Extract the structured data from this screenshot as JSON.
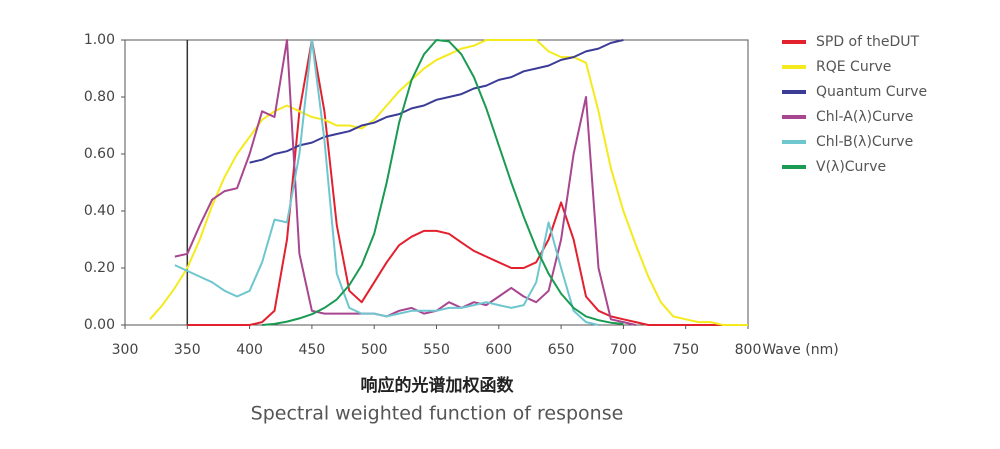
{
  "chart_data": {
    "type": "line",
    "title": "响应的光谱加权函数",
    "subtitle": "Spectral weighted function of response",
    "xlabel": "Wave (nm)",
    "x": [
      300,
      310,
      320,
      330,
      340,
      350,
      360,
      370,
      380,
      390,
      400,
      410,
      420,
      430,
      440,
      450,
      460,
      470,
      480,
      490,
      500,
      510,
      520,
      530,
      540,
      550,
      560,
      570,
      580,
      590,
      600,
      610,
      620,
      630,
      640,
      650,
      660,
      670,
      680,
      690,
      700,
      710,
      720,
      730,
      740,
      750,
      760,
      770,
      780,
      790,
      800
    ],
    "xlim": [
      300,
      800
    ],
    "xticks": [
      300,
      350,
      400,
      450,
      500,
      550,
      600,
      650,
      700,
      750,
      800
    ],
    "ylim": [
      0,
      1
    ],
    "yticks": [
      {
        "value": 0,
        "label": "0.00"
      },
      {
        "value": 0.2,
        "label": "0.20"
      },
      {
        "value": 0.4,
        "label": "0.40"
      },
      {
        "value": 0.6,
        "label": "0.60"
      },
      {
        "value": 0.8,
        "label": "0.80"
      },
      {
        "value": 1,
        "label": "1.00"
      }
    ],
    "legend": "right",
    "series": [
      {
        "name": "SPD of theDUT",
        "color": "#e2202e",
        "values": [
          null,
          null,
          null,
          null,
          null,
          0,
          0,
          0,
          0,
          0,
          0,
          0.01,
          0.05,
          0.3,
          0.75,
          1.0,
          0.75,
          0.35,
          0.12,
          0.08,
          0.15,
          0.22,
          0.28,
          0.31,
          0.33,
          0.33,
          0.32,
          0.29,
          0.26,
          0.24,
          0.22,
          0.2,
          0.2,
          0.22,
          0.3,
          0.43,
          0.3,
          0.1,
          0.05,
          0.03,
          0.02,
          0.01,
          0,
          0,
          0,
          0,
          0,
          0,
          0,
          0,
          0
        ]
      },
      {
        "name": "RQE Curve",
        "color": "#f4ea1c",
        "values": [
          null,
          null,
          0.02,
          0.07,
          0.13,
          0.2,
          0.3,
          0.42,
          0.52,
          0.6,
          0.66,
          0.72,
          0.75,
          0.77,
          0.75,
          0.73,
          0.72,
          0.7,
          0.7,
          0.69,
          0.72,
          0.77,
          0.82,
          0.86,
          0.9,
          0.93,
          0.95,
          0.97,
          0.98,
          1.0,
          1.0,
          1.0,
          1.0,
          1.0,
          0.96,
          0.94,
          0.94,
          0.92,
          0.75,
          0.55,
          0.4,
          0.28,
          0.17,
          0.08,
          0.03,
          0.02,
          0.01,
          0.01,
          0,
          0,
          0
        ]
      },
      {
        "name": "Quantum Curve",
        "color": "#3b3c96",
        "values": [
          null,
          null,
          null,
          null,
          null,
          null,
          null,
          null,
          null,
          null,
          0.57,
          0.58,
          0.6,
          0.61,
          0.63,
          0.64,
          0.66,
          0.67,
          0.68,
          0.7,
          0.71,
          0.73,
          0.74,
          0.76,
          0.77,
          0.79,
          0.8,
          0.81,
          0.83,
          0.84,
          0.86,
          0.87,
          0.89,
          0.9,
          0.91,
          0.93,
          0.94,
          0.96,
          0.97,
          0.99,
          1.0,
          null,
          null,
          null,
          null,
          null,
          null,
          null,
          null,
          null,
          null
        ]
      },
      {
        "name": "Chl-A(λ)Curve",
        "color": "#a8468f",
        "values": [
          null,
          null,
          null,
          null,
          0.24,
          0.25,
          0.35,
          0.44,
          0.47,
          0.48,
          0.6,
          0.75,
          0.73,
          1.0,
          0.25,
          0.05,
          0.04,
          0.04,
          0.04,
          0.04,
          0.04,
          0.03,
          0.05,
          0.06,
          0.04,
          0.05,
          0.08,
          0.06,
          0.08,
          0.07,
          0.1,
          0.13,
          0.1,
          0.08,
          0.12,
          0.3,
          0.6,
          0.8,
          0.2,
          0.02,
          0.01,
          0,
          null,
          null,
          null,
          null,
          null,
          null,
          null,
          null,
          null
        ]
      },
      {
        "name": "Chl-B(λ)Curve",
        "color": "#6ec6cf",
        "values": [
          null,
          null,
          null,
          null,
          0.21,
          0.19,
          0.17,
          0.15,
          0.12,
          0.1,
          0.12,
          0.22,
          0.37,
          0.36,
          0.6,
          1.0,
          0.65,
          0.18,
          0.06,
          0.04,
          0.04,
          0.03,
          0.04,
          0.05,
          0.05,
          0.05,
          0.06,
          0.06,
          0.07,
          0.08,
          0.07,
          0.06,
          0.07,
          0.15,
          0.36,
          0.2,
          0.05,
          0.01,
          0,
          null,
          null,
          null,
          null,
          null,
          null,
          null,
          null,
          null,
          null,
          null,
          null
        ]
      },
      {
        "name": "V(λ)Curve",
        "color": "#1a9a52",
        "values": [
          null,
          null,
          null,
          null,
          null,
          null,
          null,
          null,
          null,
          null,
          null,
          0,
          0.004,
          0.012,
          0.023,
          0.038,
          0.06,
          0.09,
          0.14,
          0.21,
          0.32,
          0.5,
          0.71,
          0.86,
          0.95,
          1.0,
          0.995,
          0.95,
          0.87,
          0.76,
          0.63,
          0.5,
          0.38,
          0.27,
          0.18,
          0.11,
          0.06,
          0.03,
          0.017,
          0.008,
          0.004,
          null,
          null,
          null,
          null,
          null,
          null,
          null,
          null,
          null,
          null
        ]
      }
    ]
  }
}
